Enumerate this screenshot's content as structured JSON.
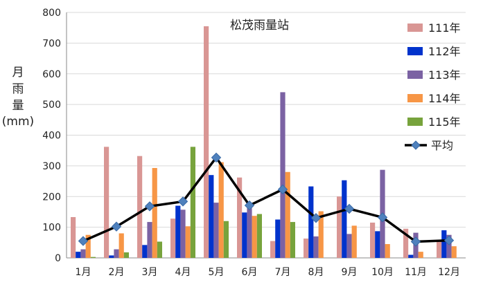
{
  "chart_data": {
    "type": "bar",
    "title": "松茂雨量站",
    "ylabel": "月雨量(mm)",
    "ylabel_lines": [
      "月",
      "雨",
      "量",
      "(mm)"
    ],
    "xlabel": "",
    "ylim": [
      0,
      800
    ],
    "yticks": [
      0,
      100,
      200,
      300,
      400,
      500,
      600,
      700,
      800
    ],
    "grid": true,
    "legend_position": "right",
    "categories": [
      "1月",
      "2月",
      "3月",
      "4月",
      "5月",
      "6月",
      "7月",
      "8月",
      "9月",
      "10月",
      "11月",
      "12月"
    ],
    "series": [
      {
        "name": "111年",
        "color": "#d99694",
        "values": [
          133,
          362,
          332,
          128,
          755,
          262,
          55,
          63,
          200,
          115,
          95,
          55
        ]
      },
      {
        "name": "112年",
        "color": "#0033cc",
        "values": [
          20,
          8,
          42,
          170,
          270,
          148,
          125,
          233,
          253,
          87,
          10,
          90
        ]
      },
      {
        "name": "113年",
        "color": "#7b62a3",
        "values": [
          28,
          28,
          117,
          157,
          180,
          162,
          540,
          70,
          78,
          287,
          82,
          75
        ]
      },
      {
        "name": "114年",
        "color": "#f79646",
        "values": [
          75,
          80,
          293,
          103,
          312,
          137,
          280,
          152,
          105,
          45,
          20,
          38
        ]
      },
      {
        "name": "115年",
        "color": "#77a33c",
        "values": [
          3,
          18,
          53,
          362,
          120,
          143,
          117,
          0,
          0,
          0,
          0,
          0
        ]
      }
    ],
    "line_series": {
      "name": "平均",
      "color": "#000000",
      "marker_color": "#4f81bd",
      "values": [
        55,
        102,
        168,
        184,
        327,
        171,
        223,
        130,
        160,
        132,
        53,
        57
      ]
    }
  }
}
